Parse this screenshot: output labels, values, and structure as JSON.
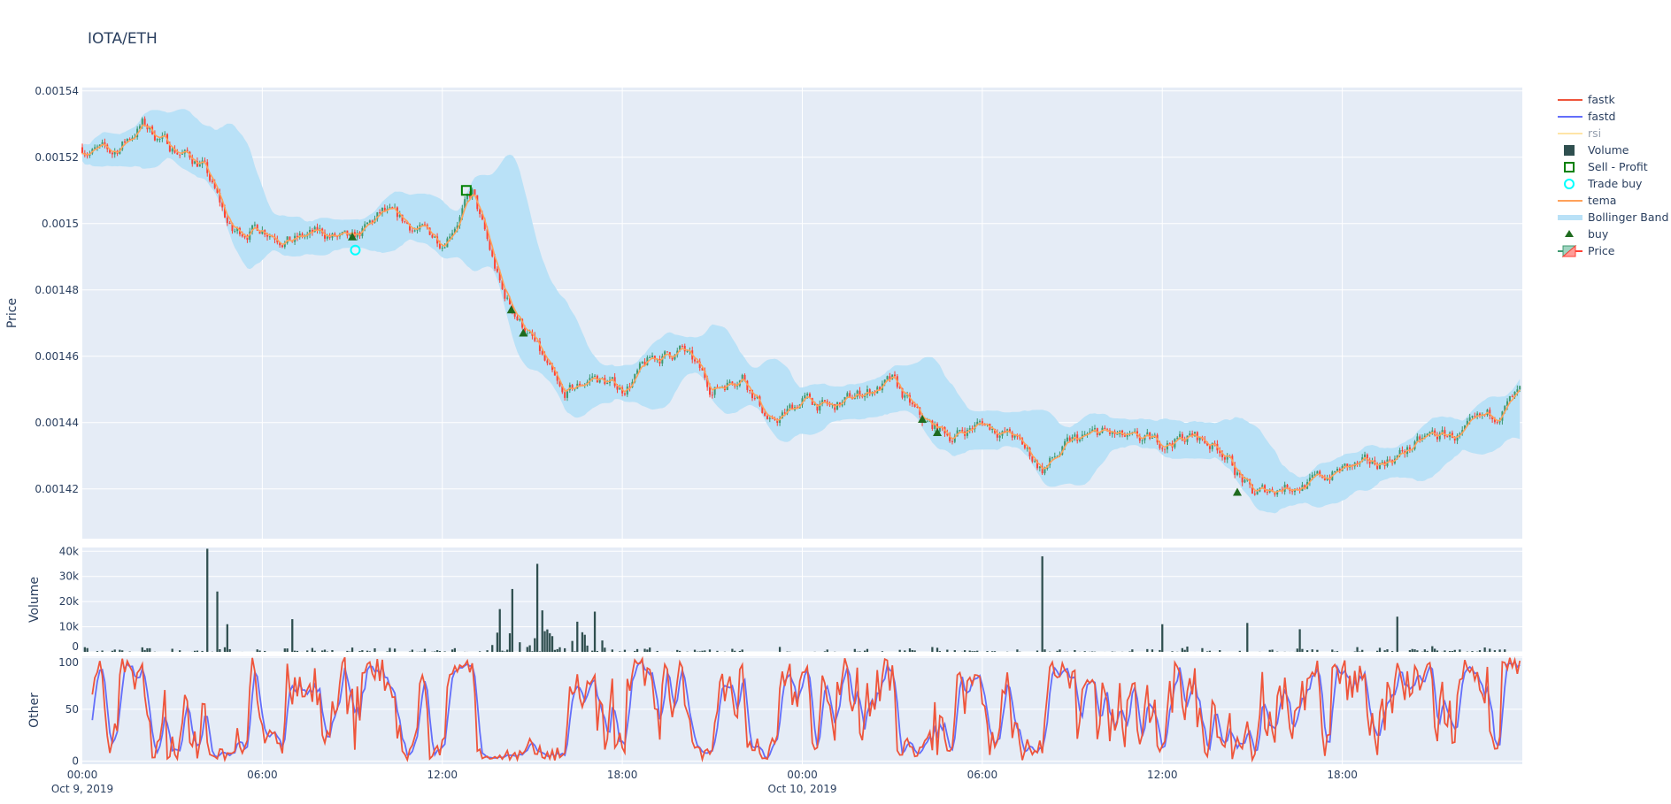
{
  "chart_data": {
    "title": "IOTA/ETH",
    "type": "candlestick",
    "x_start": "Oct 9, 2019 00:00",
    "x_end": "Oct 11, 2019 00:00",
    "x_ticks": [
      {
        "label": "00:00",
        "sub": "Oct 9, 2019",
        "hour": 0
      },
      {
        "label": "06:00",
        "sub": "",
        "hour": 6
      },
      {
        "label": "12:00",
        "sub": "",
        "hour": 12
      },
      {
        "label": "18:00",
        "sub": "",
        "hour": 18
      },
      {
        "label": "00:00",
        "sub": "Oct 10, 2019",
        "hour": 24
      },
      {
        "label": "06:00",
        "sub": "",
        "hour": 30
      },
      {
        "label": "12:00",
        "sub": "",
        "hour": 36
      },
      {
        "label": "18:00",
        "sub": "",
        "hour": 42
      }
    ],
    "panels": {
      "price": {
        "ylabel": "Price",
        "ylim": [
          0.001405,
          0.001541
        ],
        "ticks": [
          {
            "v": 0.00154,
            "label": "0.00154"
          },
          {
            "v": 0.00152,
            "label": "0.00152"
          },
          {
            "v": 0.0015,
            "label": "0.0015"
          },
          {
            "v": 0.00148,
            "label": "0.00148"
          },
          {
            "v": 0.00146,
            "label": "0.00146"
          },
          {
            "v": 0.00144,
            "label": "0.00144"
          },
          {
            "v": 0.00142,
            "label": "0.00142"
          }
        ]
      },
      "volume": {
        "ylabel": "Volume",
        "ylim": [
          0,
          41500
        ],
        "ticks": [
          {
            "v": 0,
            "label": "0"
          },
          {
            "v": 10000,
            "label": "10k"
          },
          {
            "v": 20000,
            "label": "20k"
          },
          {
            "v": 30000,
            "label": "30k"
          },
          {
            "v": 40000,
            "label": "40k"
          }
        ]
      },
      "other": {
        "ylabel": "Other",
        "ylim": [
          -3,
          101
        ],
        "ticks": [
          {
            "v": 0,
            "label": "0"
          },
          {
            "v": 50,
            "label": "50"
          },
          {
            "v": 100,
            "label": "100"
          }
        ]
      }
    },
    "hourly_close": [
      0.001523,
      0.001521,
      0.00153,
      0.001523,
      0.001518,
      0.001497,
      0.001499,
      0.001495,
      0.001497,
      0.001494,
      0.001503,
      0.001499,
      0.001495,
      0.001509,
      0.001479,
      0.001465,
      0.001447,
      0.001454,
      0.00145,
      0.001459,
      0.001462,
      0.00145,
      0.001455,
      0.001439,
      0.001447,
      0.001444,
      0.001449,
      0.001452,
      0.00144,
      0.001436,
      0.00144,
      0.001436,
      0.001426,
      0.001434,
      0.001437,
      0.001434,
      0.001434,
      0.001436,
      0.001432,
      0.001418,
      0.001421,
      0.001422,
      0.001426,
      0.001427,
      0.001431,
      0.001436,
      0.001436,
      0.001442,
      0.001449
    ],
    "volume_spikes": [
      {
        "hour": 4.2,
        "value": 41000
      },
      {
        "hour": 4.5,
        "value": 24000
      },
      {
        "hour": 4.8,
        "value": 11000
      },
      {
        "hour": 7.0,
        "value": 13000
      },
      {
        "hour": 13.9,
        "value": 17000
      },
      {
        "hour": 14.3,
        "value": 25000
      },
      {
        "hour": 15.2,
        "value": 35000
      },
      {
        "hour": 15.3,
        "value": 16500
      },
      {
        "hour": 16.5,
        "value": 12000
      },
      {
        "hour": 17.1,
        "value": 16000
      },
      {
        "hour": 32.0,
        "value": 38000
      },
      {
        "hour": 36.0,
        "value": 11000
      },
      {
        "hour": 38.8,
        "value": 11500
      },
      {
        "hour": 40.6,
        "value": 9000
      },
      {
        "hour": 43.8,
        "value": 14000
      }
    ],
    "markers": {
      "buy": [
        {
          "hour": 9.0,
          "price": 0.001496
        },
        {
          "hour": 14.3,
          "price": 0.001474
        },
        {
          "hour": 14.7,
          "price": 0.001467
        },
        {
          "hour": 28.0,
          "price": 0.001441
        },
        {
          "hour": 28.5,
          "price": 0.001437
        },
        {
          "hour": 38.5,
          "price": 0.001419
        }
      ],
      "sell_profit": [
        {
          "hour": 12.8,
          "price": 0.00151
        }
      ],
      "trade_buy": [
        {
          "hour": 9.1,
          "price": 0.001492
        }
      ]
    },
    "colors": {
      "increasing": "#3D9970",
      "decreasing": "#FF4136",
      "tema": "#FFA15A",
      "bollinger": "#B9E1F7",
      "volume": "#2F4F4F",
      "fastk": "#EF553B",
      "fastd": "#636EFA",
      "rsi": "#FECB52",
      "buy": "#1E6B1E",
      "sell_profit": "#008000",
      "trade_buy": "#00FFFF",
      "plot_bg": "#E5ECF6",
      "grid": "#FFFFFF"
    },
    "legend": {
      "placement": "right",
      "items": [
        {
          "key": "fastk",
          "label": "fastk"
        },
        {
          "key": "fastd",
          "label": "fastd"
        },
        {
          "key": "rsi",
          "label": "rsi",
          "hidden": true
        },
        {
          "key": "volume",
          "label": "Volume"
        },
        {
          "key": "sell_profit",
          "label": "Sell - Profit"
        },
        {
          "key": "trade_buy",
          "label": "Trade buy"
        },
        {
          "key": "tema",
          "label": "tema"
        },
        {
          "key": "bollinger",
          "label": "Bollinger Band"
        },
        {
          "key": "buy",
          "label": "buy"
        },
        {
          "key": "price",
          "label": "Price"
        }
      ]
    }
  }
}
